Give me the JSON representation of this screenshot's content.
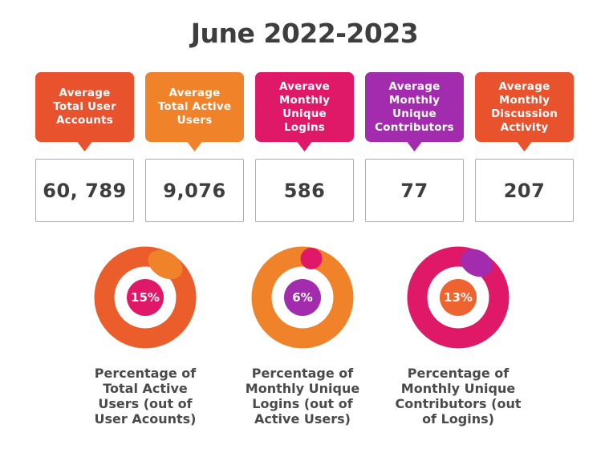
{
  "title": "June 2022-2023",
  "stat_cards": [
    {
      "label_lines": [
        "Average",
        "Total User",
        "Accounts"
      ],
      "value": "60, 789",
      "color": "#E8532E"
    },
    {
      "label_lines": [
        "Average",
        "Total Active",
        "Users"
      ],
      "value": "9,076",
      "color": "#F0832A"
    },
    {
      "label_lines": [
        "Averave",
        "Monthly",
        "Unique",
        "Logins"
      ],
      "value": "586",
      "color": "#DF1968"
    },
    {
      "label_lines": [
        "Average",
        "Monthly",
        "Unique",
        "Contributors"
      ],
      "value": "77",
      "color": "#A32CAE"
    },
    {
      "label_lines": [
        "Average",
        "Monthly",
        "Discussion",
        "Activity"
      ],
      "value": "207",
      "color": "#E8532E"
    }
  ],
  "chart_data": [
    {
      "type": "donut",
      "percent": 15,
      "center_label": "15%",
      "ring_color": "#EB5E2B",
      "segment_color": "#F0832A",
      "center_color": "#DF1968",
      "caption_lines": [
        "Percentage of",
        "Total Active",
        "Users (out of",
        "User Acounts)"
      ]
    },
    {
      "type": "donut",
      "percent": 6,
      "center_label": "6%",
      "ring_color": "#F0832A",
      "segment_color": "#DF1968",
      "center_color": "#A32CAE",
      "caption_lines": [
        "Percentage of",
        "Monthly Unique",
        "Logins (out of",
        "Active Users)"
      ]
    },
    {
      "type": "donut",
      "percent": 13,
      "center_label": "13%",
      "ring_color": "#DF1968",
      "segment_color": "#A32CAE",
      "center_color": "#ED6430",
      "caption_lines": [
        "Percentage of",
        "Monthly Unique",
        "Contributors (out",
        "of Logins)"
      ]
    }
  ]
}
